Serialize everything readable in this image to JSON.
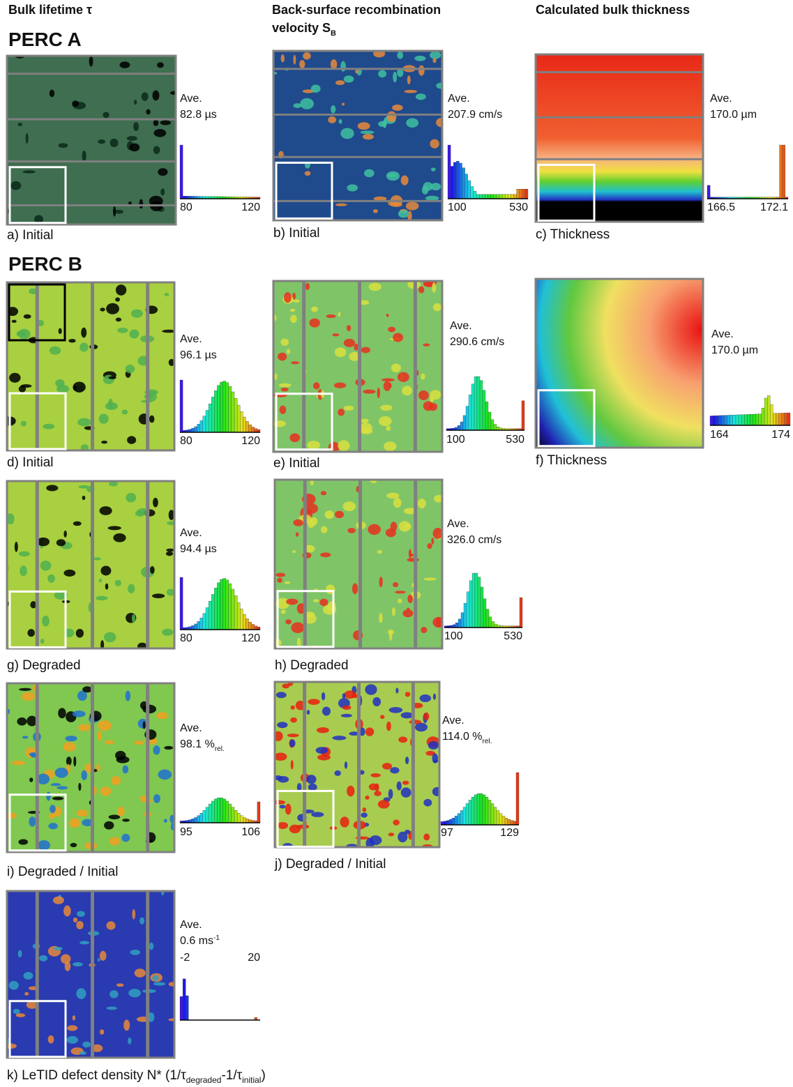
{
  "headers": [
    {
      "parts": [
        {
          "t": "Bulk lifetime τ"
        }
      ]
    },
    {
      "parts": [
        {
          "t": "Back-surface recombination"
        }
      ]
    },
    {
      "parts": [
        {
          "t": "velocity S"
        },
        {
          "sub": "B"
        }
      ]
    },
    {
      "parts": [
        {
          "t": "Calculated bulk thickness"
        }
      ]
    }
  ],
  "groups": [
    "PERC A",
    "PERC B"
  ],
  "panels": [
    {
      "caption": [
        {
          "t": "a) Initial"
        }
      ],
      "ave_label": "Ave.",
      "ave": [
        {
          "t": "82.8 µs"
        }
      ],
      "hist_min": "80",
      "hist_max": "120"
    },
    {
      "caption": [
        {
          "t": "b) Initial"
        }
      ],
      "ave_label": "Ave.",
      "ave": [
        {
          "t": "207.9 cm/s"
        }
      ],
      "hist_min": "100",
      "hist_max": "530"
    },
    {
      "caption": [
        {
          "t": "c) Thickness"
        }
      ],
      "ave_label": "Ave.",
      "ave": [
        {
          "t": "170.0 µm"
        }
      ],
      "hist_min": "166.5",
      "hist_max": "172.1"
    },
    {
      "caption": [
        {
          "t": "d) Initial"
        }
      ],
      "ave_label": "Ave.",
      "ave": [
        {
          "t": "96.1 µs"
        }
      ],
      "hist_min": "80",
      "hist_max": "120"
    },
    {
      "caption": [
        {
          "t": "e) Initial"
        }
      ],
      "ave_label": "Ave.",
      "ave": [
        {
          "t": "290.6 cm/s"
        }
      ],
      "hist_min": "100",
      "hist_max": "530"
    },
    {
      "caption": [
        {
          "t": "f) Thickness"
        }
      ],
      "ave_label": "Ave.",
      "ave": [
        {
          "t": "170.0 µm"
        }
      ],
      "hist_min": "164",
      "hist_max": "174"
    },
    {
      "caption": [
        {
          "t": "g) Degraded"
        }
      ],
      "ave_label": "Ave.",
      "ave": [
        {
          "t": "94.4 µs"
        }
      ],
      "hist_min": "80",
      "hist_max": "120"
    },
    {
      "caption": [
        {
          "t": "h) Degraded"
        }
      ],
      "ave_label": "Ave.",
      "ave": [
        {
          "t": "326.0 cm/s"
        }
      ],
      "hist_min": "100",
      "hist_max": "530"
    },
    {
      "caption": [
        {
          "t": "i) Degraded / Initial"
        }
      ],
      "ave_label": "Ave.",
      "ave": [
        {
          "t": "98.1 %"
        },
        {
          "sub": "rel."
        }
      ],
      "hist_min": "95",
      "hist_max": "106"
    },
    {
      "caption": [
        {
          "t": "j) Degraded / Initial"
        }
      ],
      "ave_label": "Ave.",
      "ave": [
        {
          "t": "114.0 %"
        },
        {
          "sub": "rel."
        }
      ],
      "hist_min": "97",
      "hist_max": "129"
    },
    {
      "caption": [
        {
          "t": "k) LeTID defect density N* (1/τ"
        },
        {
          "sub": "degraded"
        },
        {
          "t": "-1/τ"
        },
        {
          "sub": "initial"
        },
        {
          "t": ")"
        }
      ],
      "ave_label": "Ave.",
      "ave": [
        {
          "t": "0.6 ms"
        },
        {
          "sup": "-1"
        }
      ],
      "hist_min": "-2",
      "hist_max": "20"
    }
  ]
}
